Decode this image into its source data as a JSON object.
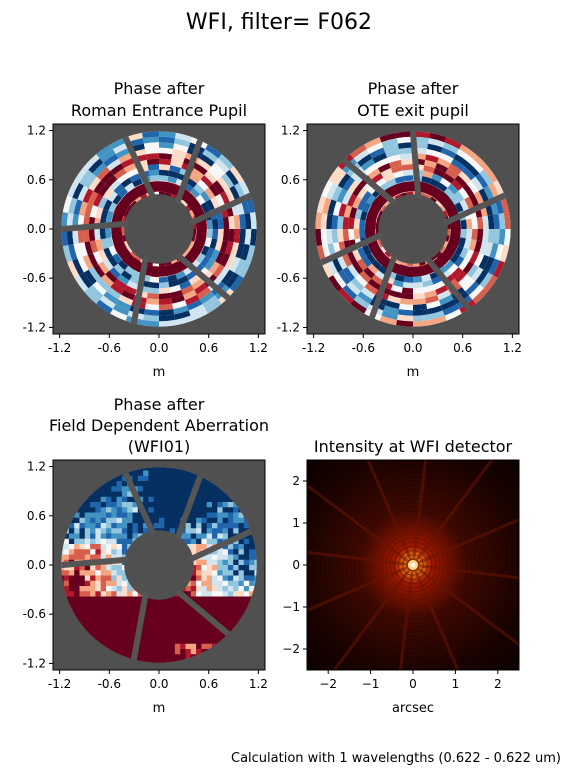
{
  "figure": {
    "suptitle": "WFI, filter= F062",
    "footnote": "Calculation with 1 wavelengths (0.622 - 0.622 um)"
  },
  "colors": {
    "background_gray": "#505050",
    "phase_positive": "#67001f",
    "phase_negative": "#053061",
    "phase_zero": "#f7f7f7",
    "strut_gray": "#555555",
    "psf_core": "#ffe0a0",
    "psf_mid": "#c02000",
    "psf_dark": "#000000"
  },
  "chart_data": [
    {
      "type": "heatmap",
      "title": "Phase after\nRoman Entrance Pupil",
      "title_lines": [
        "Phase after",
        "Roman Entrance Pupil"
      ],
      "xlabel": "m",
      "ylabel": "",
      "xlim": [
        -1.2,
        1.2
      ],
      "ylim": [
        -1.2,
        1.2
      ],
      "xticks": [
        "-1.2",
        "-0.6",
        "0.0",
        "0.6",
        "1.2"
      ],
      "yticks": [
        "1.2",
        "0.6",
        "0.0",
        "-0.6",
        "-1.2"
      ],
      "colormap": "RdBu_r",
      "pupil": {
        "outer_radius_m": 1.18,
        "inner_radius_m": 0.42,
        "strut_angles_deg": [
          100,
          170,
          245,
          305,
          10,
          55
        ],
        "rotation_deg": 0
      },
      "pattern": "annular-banded"
    },
    {
      "type": "heatmap",
      "title": "Phase after\nOTE exit pupil",
      "title_lines": [
        "Phase after",
        "OTE exit pupil"
      ],
      "xlabel": "m",
      "ylabel": "",
      "xlim": [
        -1.2,
        1.2
      ],
      "ylim": [
        -1.2,
        1.2
      ],
      "xticks": [
        "-1.2",
        "-0.6",
        "0.0",
        "0.6",
        "1.2"
      ],
      "yticks": [
        "1.2",
        "0.6",
        "0.0",
        "-0.6",
        "-1.2"
      ],
      "colormap": "RdBu_r",
      "pupil": {
        "outer_radius_m": 1.18,
        "inner_radius_m": 0.42,
        "strut_angles_deg": [
          80,
          10,
          295,
          235,
          190,
          125
        ],
        "rotation_deg": 0
      },
      "pattern": "annular-banded"
    },
    {
      "type": "heatmap",
      "title": "Phase after\nField Dependent Aberration\n(WFI01)",
      "title_lines": [
        "Phase after",
        "Field Dependent Aberration",
        "(WFI01)"
      ],
      "xlabel": "m",
      "ylabel": "",
      "xlim": [
        -1.2,
        1.2
      ],
      "ylim": [
        -1.2,
        1.2
      ],
      "xticks": [
        "-1.2",
        "-0.6",
        "0.0",
        "0.6",
        "1.2"
      ],
      "yticks": [
        "1.2",
        "0.6",
        "0.0",
        "-0.6",
        "-1.2"
      ],
      "colormap": "RdBu_r",
      "pupil": {
        "outer_radius_m": 1.18,
        "inner_radius_m": 0.42,
        "strut_angles_deg": [
          100,
          170,
          245,
          305,
          10,
          55
        ],
        "rotation_deg": 0
      },
      "pattern": "tilted-lower-red"
    },
    {
      "type": "heatmap",
      "title": "Intensity at WFI detector",
      "title_lines": [
        "Intensity at WFI detector"
      ],
      "xlabel": "arcsec",
      "ylabel": "",
      "xlim": [
        -2.5,
        2.5
      ],
      "ylim": [
        -2.5,
        2.5
      ],
      "xticks": [
        "−2",
        "−1",
        "0",
        "1",
        "2"
      ],
      "yticks": [
        "2",
        "1",
        "0",
        "−1",
        "−2"
      ],
      "colormap": "gist_heat",
      "spikes": 12,
      "pattern": "psf"
    }
  ]
}
